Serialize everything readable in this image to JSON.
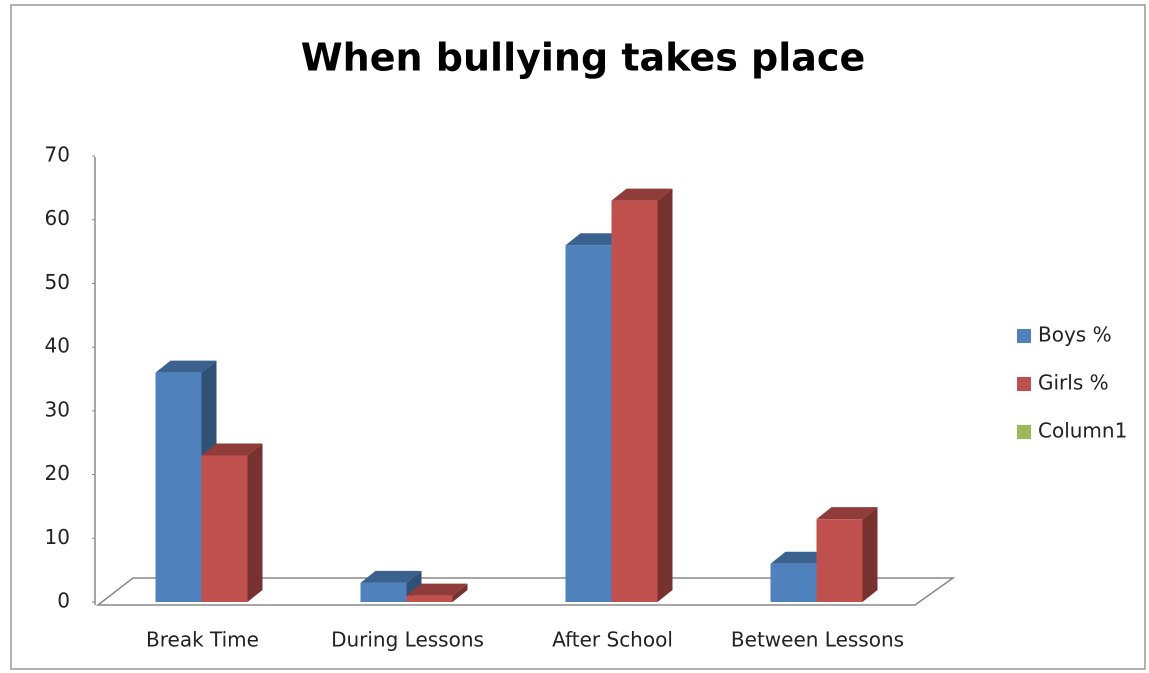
{
  "chart_data": {
    "type": "bar3d",
    "title": "When bullying takes place",
    "categories": [
      "Break Time",
      "During Lessons",
      "After School",
      "Between Lessons"
    ],
    "series": [
      {
        "name": "Boys %",
        "color": "#4f81bd",
        "values": [
          36,
          3,
          56,
          6
        ]
      },
      {
        "name": "Girls %",
        "color": "#c0504d",
        "values": [
          23,
          1,
          63,
          13
        ]
      },
      {
        "name": "Column1",
        "color": "#9bbb59",
        "values": [
          null,
          null,
          null,
          null
        ]
      }
    ],
    "ylim": [
      0,
      70
    ],
    "yticks": [
      0,
      10,
      20,
      30,
      40,
      50,
      60,
      70
    ],
    "grid": false,
    "legend": "right"
  }
}
